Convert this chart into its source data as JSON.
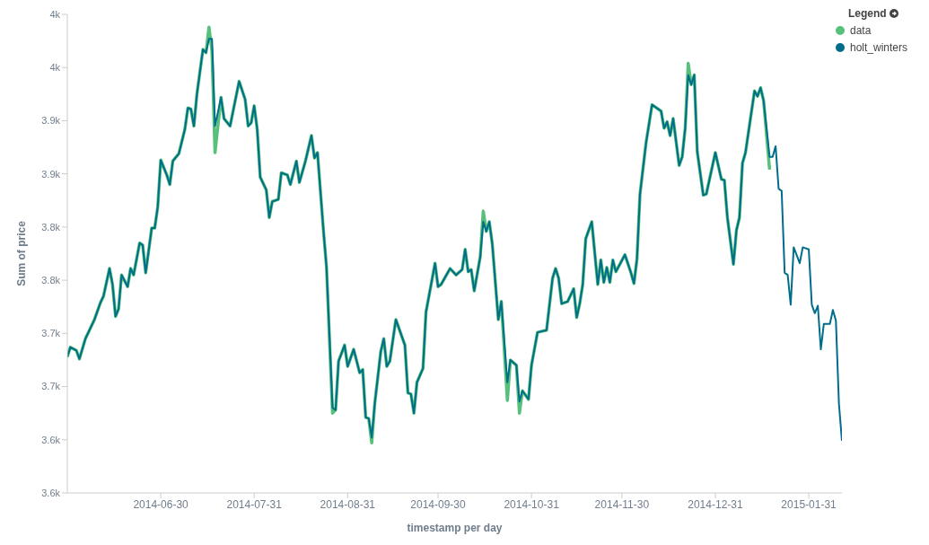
{
  "chart_data": {
    "type": "line",
    "xlabel": "timestamp per day",
    "ylabel": "Sum of price",
    "legend_title": "Legend",
    "legend": "top right",
    "grid": false,
    "xlim": [
      "2014-05-30",
      "2015-02-11"
    ],
    "xticks": [
      "2014-06-30",
      "2014-07-31",
      "2014-08-31",
      "2014-09-30",
      "2014-10-31",
      "2014-11-30",
      "2014-12-31",
      "2015-01-31"
    ],
    "ylim": [
      3550,
      4000
    ],
    "yticks": [
      {
        "value": 3550,
        "label": "3.6k"
      },
      {
        "value": 3600,
        "label": "3.6k"
      },
      {
        "value": 3650,
        "label": "3.7k"
      },
      {
        "value": 3700,
        "label": "3.7k"
      },
      {
        "value": 3750,
        "label": "3.8k"
      },
      {
        "value": 3800,
        "label": "3.8k"
      },
      {
        "value": 3850,
        "label": "3.9k"
      },
      {
        "value": 3900,
        "label": "3.9k"
      },
      {
        "value": 3950,
        "label": "4k"
      },
      {
        "value": 4000,
        "label": "4k"
      }
    ],
    "x": [
      "2014-05-30",
      "2014-05-31",
      "2014-06-02",
      "2014-06-03",
      "2014-06-05",
      "2014-06-08",
      "2014-06-10",
      "2014-06-11",
      "2014-06-13",
      "2014-06-14",
      "2014-06-15",
      "2014-06-16",
      "2014-06-17",
      "2014-06-19",
      "2014-06-20",
      "2014-06-21",
      "2014-06-23",
      "2014-06-24",
      "2014-06-25",
      "2014-06-27",
      "2014-06-28",
      "2014-06-29",
      "2014-06-30",
      "2014-07-02",
      "2014-07-03",
      "2014-07-04",
      "2014-07-06",
      "2014-07-08",
      "2014-07-09",
      "2014-07-10",
      "2014-07-11",
      "2014-07-12",
      "2014-07-14",
      "2014-07-15",
      "2014-07-16",
      "2014-07-17",
      "2014-07-18",
      "2014-07-20",
      "2014-07-21",
      "2014-07-23",
      "2014-07-26",
      "2014-07-28",
      "2014-07-29",
      "2014-07-30",
      "2014-07-31",
      "2014-08-01",
      "2014-08-02",
      "2014-08-04",
      "2014-08-05",
      "2014-08-06",
      "2014-08-08",
      "2014-08-09",
      "2014-08-11",
      "2014-08-12",
      "2014-08-14",
      "2014-08-15",
      "2014-08-17",
      "2014-08-19",
      "2014-08-20",
      "2014-08-21",
      "2014-08-23",
      "2014-08-24",
      "2014-08-26",
      "2014-08-27",
      "2014-08-28",
      "2014-08-30",
      "2014-08-31",
      "2014-09-02",
      "2014-09-04",
      "2014-09-05",
      "2014-09-06",
      "2014-09-07",
      "2014-09-08",
      "2014-09-09",
      "2014-09-11",
      "2014-09-12",
      "2014-09-13",
      "2014-09-14",
      "2014-09-16",
      "2014-09-19",
      "2014-09-20",
      "2014-09-21",
      "2014-09-22",
      "2014-09-23",
      "2014-09-25",
      "2014-09-26",
      "2014-09-29",
      "2014-09-30",
      "2014-10-01",
      "2014-10-04",
      "2014-10-06",
      "2014-10-08",
      "2014-10-09",
      "2014-10-10",
      "2014-10-11",
      "2014-10-12",
      "2014-10-14",
      "2014-10-15",
      "2014-10-16",
      "2014-10-17",
      "2014-10-18",
      "2014-10-20",
      "2014-10-21",
      "2014-10-23",
      "2014-10-24",
      "2014-10-26",
      "2014-10-27",
      "2014-10-28",
      "2014-10-30",
      "2014-10-31",
      "2014-11-02",
      "2014-11-05",
      "2014-11-07",
      "2014-11-08",
      "2014-11-09",
      "2014-11-10",
      "2014-11-12",
      "2014-11-14",
      "2014-11-15",
      "2014-11-16",
      "2014-11-17",
      "2014-11-18",
      "2014-11-20",
      "2014-11-22",
      "2014-11-23",
      "2014-11-24",
      "2014-11-25",
      "2014-11-26",
      "2014-11-27",
      "2014-11-28",
      "2014-12-01",
      "2014-12-03",
      "2014-12-04",
      "2014-12-05",
      "2014-12-06",
      "2014-12-08",
      "2014-12-10",
      "2014-12-13",
      "2014-12-14",
      "2014-12-15",
      "2014-12-16",
      "2014-12-17",
      "2014-12-19",
      "2014-12-20",
      "2014-12-21",
      "2014-12-22",
      "2014-12-23",
      "2014-12-24",
      "2014-12-25",
      "2014-12-27",
      "2014-12-28",
      "2014-12-31",
      "2015-01-02",
      "2015-01-03",
      "2015-01-04",
      "2015-01-06",
      "2015-01-07",
      "2015-01-08",
      "2015-01-09",
      "2015-01-10",
      "2015-01-13",
      "2015-01-14",
      "2015-01-15",
      "2015-01-16",
      "2015-01-18",
      "2015-01-19",
      "2015-01-20",
      "2015-01-21",
      "2015-01-22",
      "2015-01-23",
      "2015-01-24",
      "2015-01-25",
      "2015-01-26",
      "2015-01-28",
      "2015-01-29",
      "2015-01-31",
      "2015-02-01",
      "2015-02-02",
      "2015-02-03",
      "2015-02-04",
      "2015-02-05",
      "2015-02-07",
      "2015-02-08",
      "2015-02-09",
      "2015-02-10",
      "2015-02-11"
    ],
    "series": [
      {
        "name": "data",
        "color": "#57c17b",
        "values": [
          3678,
          3687,
          3684,
          3676,
          3695,
          3713,
          3729,
          3735,
          3761,
          3746,
          3716,
          3723,
          3755,
          3744,
          3761,
          3755,
          3785,
          3783,
          3757,
          3799,
          3799,
          3819,
          3863,
          3849,
          3840,
          3862,
          3869,
          3892,
          3912,
          3911,
          3895,
          3925,
          3967,
          3964,
          3988,
          3965,
          3870,
          3922,
          3902,
          3895,
          3937,
          3920,
          3895,
          3898,
          3914,
          3892,
          3847,
          3835,
          3809,
          3824,
          3826,
          3851,
          3849,
          3840,
          3862,
          3842,
          3862,
          3886,
          3865,
          3870,
          3796,
          3762,
          3625,
          3628,
          3674,
          3689,
          3669,
          3685,
          3663,
          3666,
          3621,
          3620,
          3597,
          3634,
          3683,
          3695,
          3669,
          3674,
          3713,
          3689,
          3644,
          3643,
          3625,
          3654,
          3667,
          3720,
          3766,
          3744,
          3746,
          3761,
          3755,
          3760,
          3779,
          3758,
          3760,
          3740,
          3772,
          3815,
          3796,
          3805,
          3784,
          3713,
          3730,
          3637,
          3675,
          3670,
          3625,
          3646,
          3638,
          3670,
          3701,
          3703,
          3752,
          3761,
          3752,
          3728,
          3730,
          3742,
          3715,
          3728,
          3746,
          3789,
          3805,
          3746,
          3769,
          3748,
          3762,
          3748,
          3769,
          3758,
          3774,
          3757,
          3747,
          3770,
          3831,
          3879,
          3915,
          3909,
          3893,
          3899,
          3886,
          3902,
          3858,
          3866,
          3893,
          3954,
          3934,
          3943,
          3871,
          3830,
          3831,
          3870,
          3845,
          3844,
          3809,
          3765,
          3797,
          3809,
          3860,
          3870,
          3928,
          3923,
          3931,
          3919,
          3854,
          null,
          null,
          null,
          null,
          null,
          null,
          null,
          null,
          null,
          null,
          null,
          null,
          null,
          null,
          null,
          null,
          null,
          null,
          null,
          null,
          null
        ]
      },
      {
        "name": "holt_winters",
        "color": "#006e8a",
        "values": [
          3678,
          3687,
          3684,
          3676,
          3695,
          3713,
          3729,
          3735,
          3761,
          3746,
          3716,
          3723,
          3755,
          3744,
          3761,
          3755,
          3785,
          3783,
          3757,
          3799,
          3799,
          3819,
          3863,
          3849,
          3840,
          3862,
          3869,
          3892,
          3912,
          3911,
          3895,
          3925,
          3967,
          3964,
          3977,
          3977,
          3895,
          3922,
          3902,
          3895,
          3937,
          3920,
          3895,
          3898,
          3914,
          3892,
          3847,
          3835,
          3809,
          3824,
          3826,
          3851,
          3849,
          3840,
          3862,
          3842,
          3862,
          3886,
          3865,
          3870,
          3796,
          3762,
          3630,
          3628,
          3674,
          3689,
          3669,
          3685,
          3663,
          3666,
          3621,
          3620,
          3602,
          3634,
          3683,
          3695,
          3669,
          3674,
          3713,
          3689,
          3644,
          3643,
          3625,
          3654,
          3667,
          3720,
          3766,
          3744,
          3746,
          3761,
          3755,
          3760,
          3779,
          3758,
          3760,
          3740,
          3772,
          3805,
          3796,
          3805,
          3784,
          3713,
          3730,
          3654,
          3675,
          3670,
          3636,
          3646,
          3638,
          3670,
          3701,
          3703,
          3752,
          3761,
          3752,
          3728,
          3730,
          3742,
          3715,
          3728,
          3746,
          3789,
          3805,
          3746,
          3769,
          3748,
          3762,
          3748,
          3769,
          3758,
          3774,
          3757,
          3747,
          3770,
          3831,
          3879,
          3915,
          3909,
          3893,
          3899,
          3886,
          3902,
          3858,
          3866,
          3893,
          3943,
          3934,
          3943,
          3871,
          3830,
          3831,
          3870,
          3845,
          3844,
          3809,
          3765,
          3797,
          3809,
          3860,
          3870,
          3928,
          3923,
          3931,
          3919,
          3866,
          3866,
          3876,
          3836,
          3834,
          3757,
          3755,
          3727,
          3781,
          3766,
          3781,
          3779,
          3727,
          3719,
          3726,
          3685,
          3709,
          3709,
          3722,
          3712,
          3634,
          3599
        ]
      }
    ]
  }
}
